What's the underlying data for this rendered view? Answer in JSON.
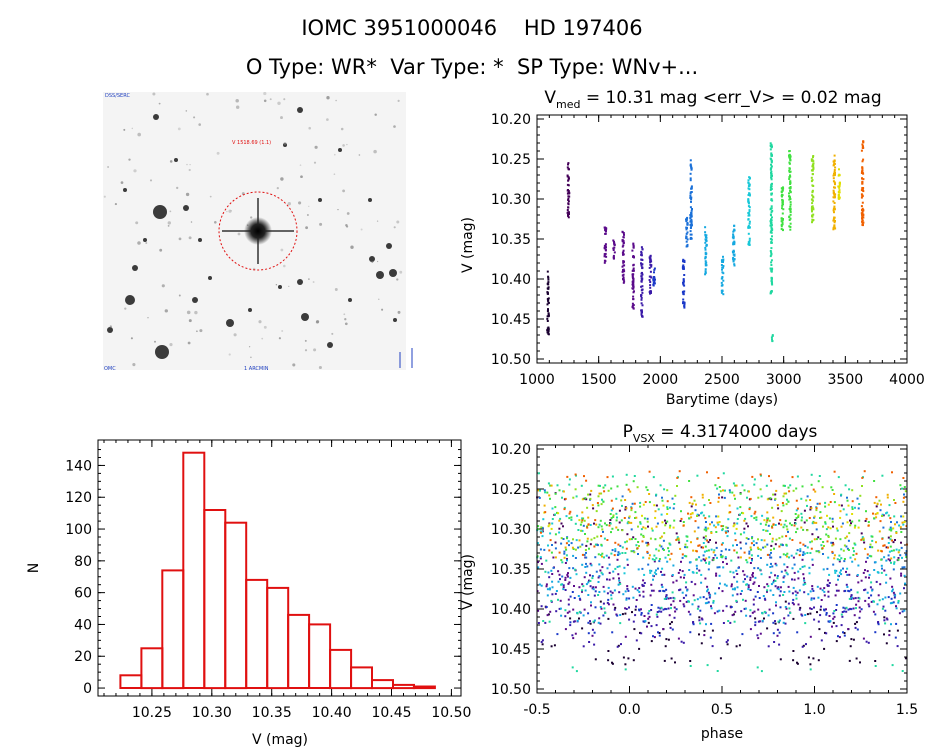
{
  "header": {
    "line1": "IOMC 3951000046    HD 197406",
    "line2": "O Type: WR*  Var Type: *  SP Type: WNv+..."
  },
  "finder": {
    "corner_label": "DSS/SERC",
    "target_label": "V 1518.69 (1.1)",
    "bottom_label": "1 ARCMIN",
    "left_bottom_label": "OMC"
  },
  "colors": {
    "histogram": "#e01010",
    "circle": "#e01010",
    "palette": [
      "#1a0030",
      "#440058",
      "#5a0a8a",
      "#3a1aa8",
      "#1a38c8",
      "#1a70d8",
      "#14a8e0",
      "#18c8d8",
      "#20d8a0",
      "#40e040",
      "#90e020",
      "#e0e000",
      "#f0b000",
      "#f06000",
      "#d03010"
    ]
  },
  "chart_data": [
    {
      "type": "scatter",
      "id": "light-curve",
      "title_base": "V",
      "title_sub": "med",
      "title_rest": " = 10.31 mag <err_V> = 0.02 mag",
      "xlabel": "Barytime (days)",
      "ylabel": "V (mag)",
      "xlim": [
        1000,
        4000
      ],
      "ylim": [
        10.505,
        10.195
      ],
      "xticks": [
        1000,
        1500,
        2000,
        2500,
        3000,
        3500,
        4000
      ],
      "yticks": [
        10.2,
        10.25,
        10.3,
        10.35,
        10.4,
        10.45,
        10.5
      ],
      "groups": [
        {
          "x": 1090,
          "min": 10.39,
          "max": 10.47,
          "c": 0
        },
        {
          "x": 1255,
          "min": 10.255,
          "max": 10.325,
          "c": 1
        },
        {
          "x": 1555,
          "min": 10.335,
          "max": 10.385,
          "c": 2
        },
        {
          "x": 1625,
          "min": 10.35,
          "max": 10.375,
          "c": 2
        },
        {
          "x": 1700,
          "min": 10.34,
          "max": 10.405,
          "c": 2
        },
        {
          "x": 1780,
          "min": 10.355,
          "max": 10.44,
          "c": 2
        },
        {
          "x": 1850,
          "min": 10.36,
          "max": 10.45,
          "c": 3
        },
        {
          "x": 1920,
          "min": 10.37,
          "max": 10.42,
          "c": 3
        },
        {
          "x": 1950,
          "min": 10.385,
          "max": 10.41,
          "c": 4
        },
        {
          "x": 2190,
          "min": 10.375,
          "max": 10.44,
          "c": 4
        },
        {
          "x": 2215,
          "min": 10.32,
          "max": 10.36,
          "c": 5
        },
        {
          "x": 2250,
          "min": 10.25,
          "max": 10.35,
          "c": 5
        },
        {
          "x": 2370,
          "min": 10.335,
          "max": 10.395,
          "c": 6
        },
        {
          "x": 2505,
          "min": 10.37,
          "max": 10.42,
          "c": 6
        },
        {
          "x": 2595,
          "min": 10.33,
          "max": 10.385,
          "c": 6
        },
        {
          "x": 2720,
          "min": 10.27,
          "max": 10.36,
          "c": 7
        },
        {
          "x": 2900,
          "min": 10.23,
          "max": 10.42,
          "c": 8
        },
        {
          "x": 2910,
          "min": 10.47,
          "max": 10.48,
          "c": 8
        },
        {
          "x": 2990,
          "min": 10.28,
          "max": 10.34,
          "c": 9
        },
        {
          "x": 3050,
          "min": 10.24,
          "max": 10.34,
          "c": 9
        },
        {
          "x": 3235,
          "min": 10.245,
          "max": 10.33,
          "c": 10
        },
        {
          "x": 3410,
          "min": 10.245,
          "max": 10.34,
          "c": 12
        },
        {
          "x": 3450,
          "min": 10.26,
          "max": 10.3,
          "c": 11
        },
        {
          "x": 3640,
          "min": 10.225,
          "max": 10.335,
          "c": 13
        }
      ]
    },
    {
      "type": "bar",
      "id": "histogram",
      "xlabel": "V (mag)",
      "ylabel": "N",
      "xlim": [
        10.205,
        10.508
      ],
      "ylim": [
        -5,
        156
      ],
      "xticks": [
        10.25,
        10.3,
        10.35,
        10.4,
        10.45,
        10.5
      ],
      "yticks": [
        0,
        20,
        40,
        60,
        80,
        100,
        120,
        140
      ],
      "bin_width": 0.0175,
      "bin_left_edges": [
        10.2237,
        10.2412,
        10.2587,
        10.2762,
        10.2937,
        10.3112,
        10.3287,
        10.3462,
        10.3637,
        10.3812,
        10.3987,
        10.4162,
        10.4337,
        10.4512,
        10.4687
      ],
      "values": [
        8,
        25,
        74,
        148,
        112,
        104,
        68,
        63,
        46,
        40,
        24,
        13,
        5,
        2,
        1
      ]
    },
    {
      "type": "scatter",
      "id": "phased-curve",
      "title_base": "P",
      "title_sub": "VSX",
      "title_rest": " = 4.3174000 days",
      "xlabel": "phase",
      "ylabel": "V (mag)",
      "period": 4.3174,
      "xlim": [
        -0.5,
        1.5
      ],
      "ylim": [
        10.505,
        10.195
      ],
      "xticks": [
        -0.5,
        0.0,
        0.5,
        1.0,
        1.5
      ],
      "yticks": [
        10.2,
        10.25,
        10.3,
        10.35,
        10.4,
        10.45,
        10.5
      ]
    }
  ]
}
